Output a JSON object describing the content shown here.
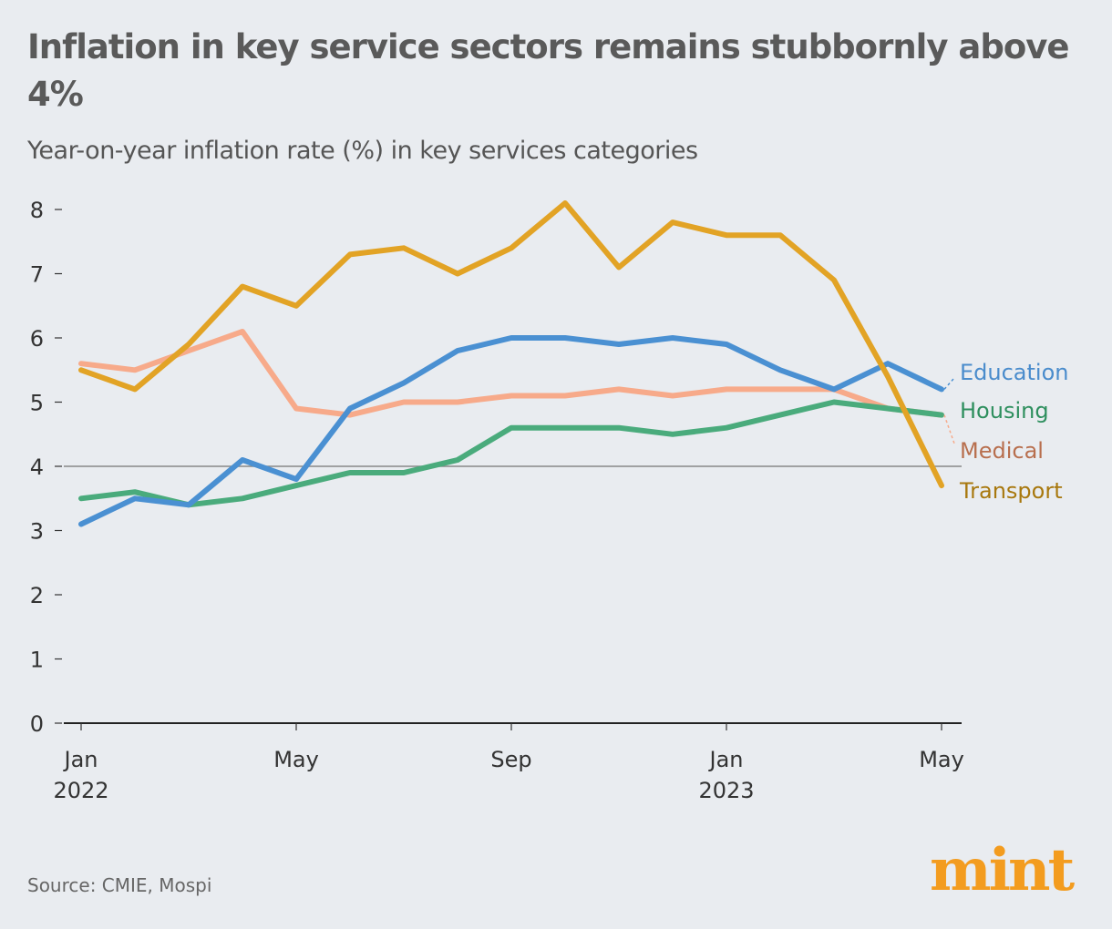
{
  "chart_data": {
    "type": "line",
    "title": "Inflation in key service sectors remains stubbornly above 4%",
    "subtitle": "Year-on-year inflation rate (%) in key services categories",
    "x": [
      "2022-01",
      "2022-02",
      "2022-03",
      "2022-04",
      "2022-05",
      "2022-06",
      "2022-07",
      "2022-08",
      "2022-09",
      "2022-10",
      "2022-11",
      "2022-12",
      "2023-01",
      "2023-02",
      "2023-03",
      "2023-04",
      "2023-05"
    ],
    "x_ticks": [
      {
        "at": 0,
        "label": "Jan",
        "year": "2022"
      },
      {
        "at": 4,
        "label": "May",
        "year": ""
      },
      {
        "at": 8,
        "label": "Sep",
        "year": ""
      },
      {
        "at": 12,
        "label": "Jan",
        "year": "2023"
      },
      {
        "at": 16,
        "label": "May",
        "year": ""
      }
    ],
    "y_ticks": [
      "0",
      "1",
      "2",
      "3",
      "4",
      "5",
      "6",
      "7",
      "8"
    ],
    "ylim": [
      0,
      8
    ],
    "reference_line": 4,
    "grid": false,
    "legend": "right (direct labels)",
    "series": [
      {
        "name": "Transport",
        "color": "#e2a325",
        "label_color": "#a8780e",
        "values": [
          5.5,
          5.2,
          5.9,
          6.8,
          6.5,
          7.3,
          7.4,
          7.0,
          7.4,
          8.1,
          7.1,
          7.8,
          7.6,
          7.6,
          6.9,
          5.4,
          3.7
        ]
      },
      {
        "name": "Education",
        "color": "#4a90d2",
        "label_color": "#4a8ccc",
        "values": [
          3.1,
          3.5,
          3.4,
          4.1,
          3.8,
          4.9,
          5.3,
          5.8,
          6.0,
          6.0,
          5.9,
          6.0,
          5.9,
          5.5,
          5.2,
          5.6,
          5.2
        ]
      },
      {
        "name": "Medical",
        "color": "#f7aa8a",
        "label_color": "#b86f4e",
        "values": [
          5.6,
          5.5,
          5.8,
          6.1,
          4.9,
          4.8,
          5.0,
          5.0,
          5.1,
          5.1,
          5.2,
          5.1,
          5.2,
          5.2,
          5.2,
          4.9,
          4.8
        ]
      },
      {
        "name": "Housing",
        "color": "#4aab7c",
        "label_color": "#2e8f5e",
        "values": [
          3.5,
          3.6,
          3.4,
          3.5,
          3.7,
          3.9,
          3.9,
          4.1,
          4.6,
          4.6,
          4.6,
          4.5,
          4.6,
          4.8,
          5.0,
          4.9,
          4.8
        ]
      }
    ]
  },
  "source": "Source: CMIE, Mospi",
  "logo": "mint"
}
